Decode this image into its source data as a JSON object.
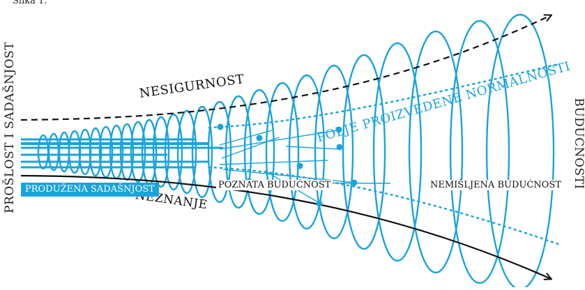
{
  "caption": "Slika 1.",
  "left_axis_label": "PROŠLOST I SADAŠNJOST",
  "right_axis_label": "BUDUĆNOSTI",
  "upper_boundary_label": "NESIGURNOST",
  "lower_boundary_label": "NEZNANJE",
  "extended_present_label": "PRODUŽENA SADAŠNJOST",
  "known_future_label": "POZNATA BUDUĆNOST",
  "unthought_future_label": "NEMIŠLJENA BUDUĆNOST",
  "field_label": "POLJE PROIZVEDENE NORMALNOSTI",
  "colors": {
    "accent": "#1aa3dc",
    "line": "#111111",
    "background": "#ffffff"
  }
}
